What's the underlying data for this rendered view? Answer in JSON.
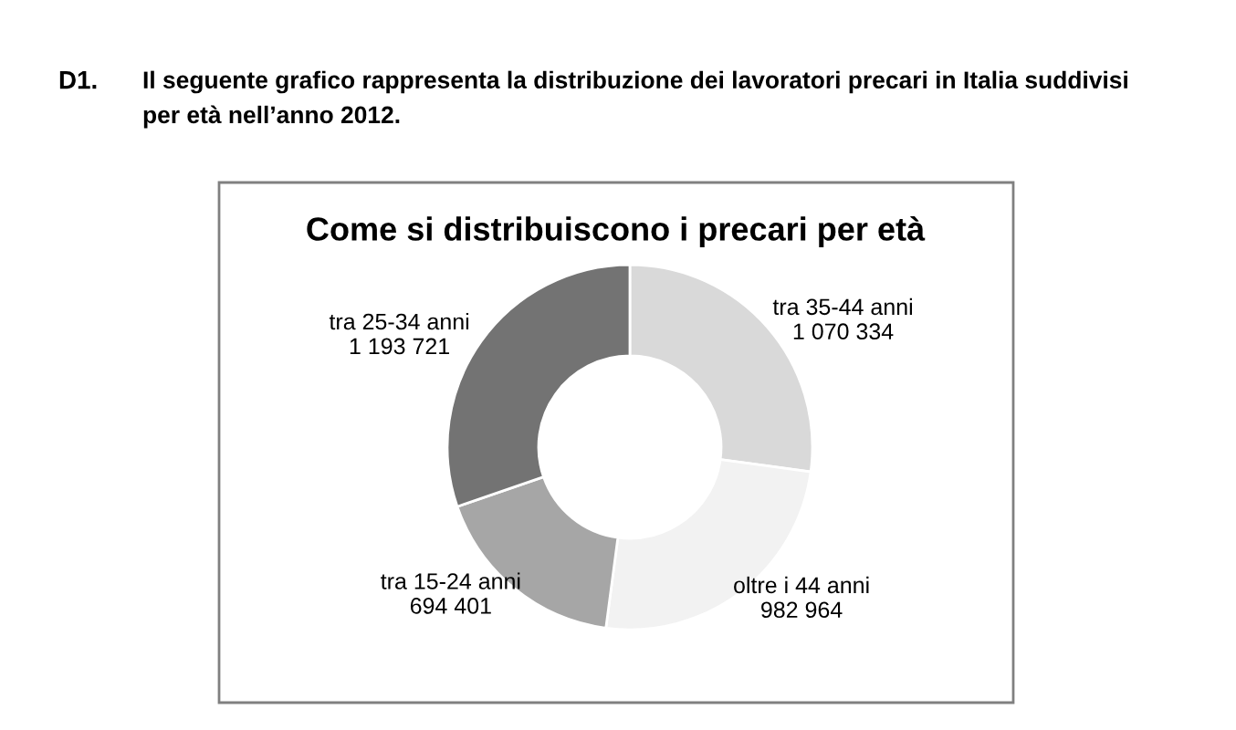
{
  "chart_data": {
    "type": "donut",
    "title": "Come si distribuiscono i precari per età",
    "categories": [
      "tra 35-44 anni",
      "oltre i 44 anni",
      "tra 15-24 anni",
      "tra 25-34 anni"
    ],
    "values": [
      1070334,
      982964,
      694401,
      1193721
    ],
    "value_labels": [
      "1 070 334",
      "982 964",
      "694 401",
      "1 193 721"
    ],
    "colors": [
      "#d9d9d9",
      "#f2f2f2",
      "#a6a6a6",
      "#737373"
    ],
    "legend": false,
    "annotations": [
      "D1.",
      "Il seguente grafico rappresenta la distribuzione dei lavoratori precari in Italia suddivisi",
      "per età nell’anno 2012."
    ]
  }
}
